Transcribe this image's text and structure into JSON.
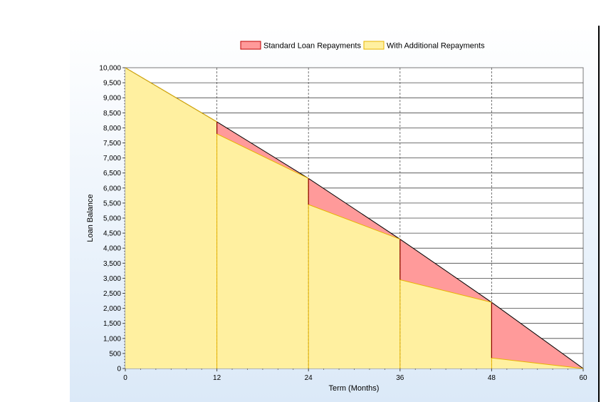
{
  "chart_data": {
    "type": "area",
    "title": "",
    "xlabel": "Term (Months)",
    "ylabel": "Loan Balance",
    "xlim": [
      0,
      60
    ],
    "ylim": [
      0,
      10000
    ],
    "x_ticks": [
      0,
      12,
      24,
      36,
      48,
      60
    ],
    "y_ticks": [
      0,
      500,
      1000,
      1500,
      2000,
      2500,
      3000,
      3500,
      4000,
      4500,
      5000,
      5500,
      6000,
      6500,
      7000,
      7500,
      8000,
      8500,
      9000,
      9500,
      10000
    ],
    "y_tick_labels": [
      "0",
      "500",
      "1,000",
      "1,500",
      "2,000",
      "2,500",
      "3,000",
      "3,500",
      "4,000",
      "4,500",
      "5,000",
      "5,500",
      "6,000",
      "6,500",
      "7,000",
      "7,500",
      "8,000",
      "8,500",
      "9,000",
      "9,500",
      "10,000"
    ],
    "grid": true,
    "legend_position": "top",
    "series": [
      {
        "name": "Standard Loan Repayments",
        "color": "#ff9a9a",
        "line_color": "#000000",
        "points": [
          [
            0,
            10000
          ],
          [
            12,
            8200
          ],
          [
            24,
            6320
          ],
          [
            36,
            4300
          ],
          [
            48,
            2200
          ],
          [
            60,
            0
          ]
        ]
      },
      {
        "name": "With Additional Repayments",
        "color": "#fff0a0",
        "line_color": "#e8b400",
        "points": [
          [
            0,
            10000
          ],
          [
            12,
            8200
          ],
          [
            12,
            7800
          ],
          [
            24,
            6320
          ],
          [
            24,
            5450
          ],
          [
            36,
            4300
          ],
          [
            36,
            2950
          ],
          [
            48,
            2200
          ],
          [
            48,
            350
          ],
          [
            60,
            0
          ]
        ]
      }
    ]
  }
}
